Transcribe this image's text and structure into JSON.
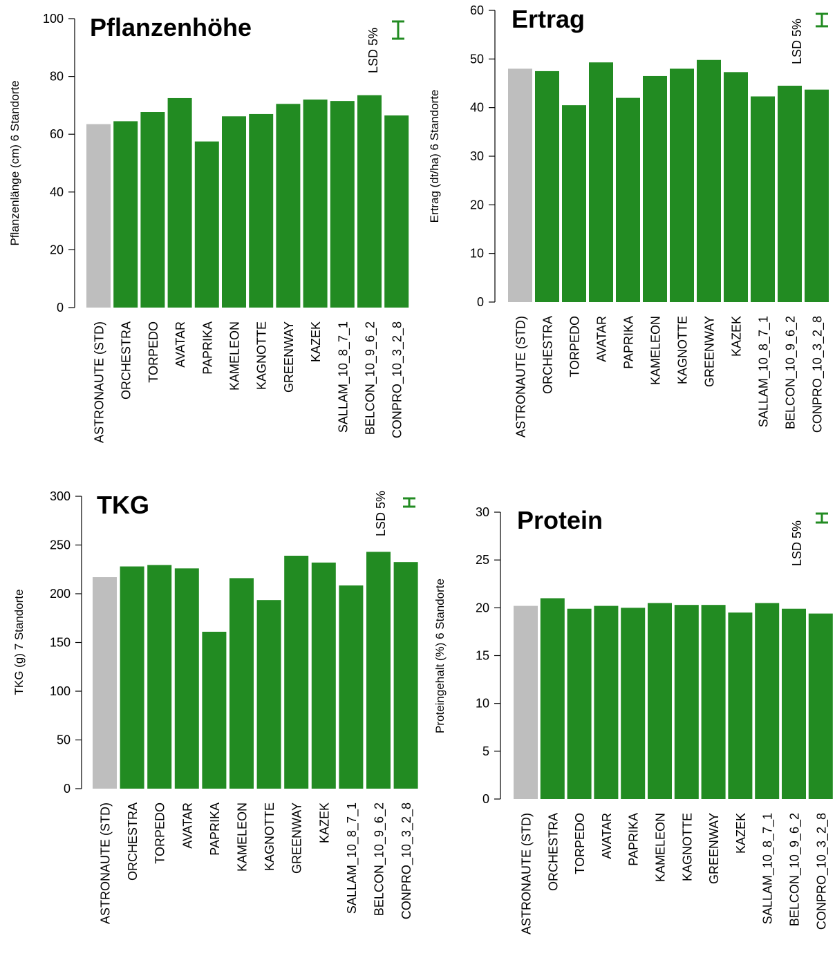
{
  "colors": {
    "std_bar": "#bebebe",
    "bar": "#228b22",
    "axis": "#000000",
    "lsd": "#228b22"
  },
  "categories": [
    "ASTRONAUTE (STD)",
    "ORCHESTRA",
    "TORPEDO",
    "AVATAR",
    "PAPRIKA",
    "KAMELEON",
    "KAGNOTTE",
    "GREENWAY",
    "KAZEK",
    "SALLAM_10_8_7_1",
    "BELCON_10_9_6_2",
    "CONPRO_10_3_2_8"
  ],
  "chart_data": [
    {
      "type": "bar",
      "title": "Pflanzenhöhe",
      "ylabel": "Pflanzenlänge (cm) 6 Standorte",
      "ylim": [
        0,
        100
      ],
      "yticks": [
        0,
        20,
        40,
        60,
        80,
        100
      ],
      "categories": [
        "ASTRONAUTE (STD)",
        "ORCHESTRA",
        "TORPEDO",
        "AVATAR",
        "PAPRIKA",
        "KAMELEON",
        "KAGNOTTE",
        "GREENWAY",
        "KAZEK",
        "SALLAM_10_8_7_1",
        "BELCON_10_9_6_2",
        "CONPRO_10_3_2_8"
      ],
      "values": [
        63.5,
        64.5,
        67.7,
        72.5,
        57.5,
        66.2,
        67.0,
        70.5,
        72.0,
        71.5,
        73.5,
        66.5
      ],
      "standard_index": 0,
      "lsd_label": "LSD 5%",
      "lsd": 6
    },
    {
      "type": "bar",
      "title": "Ertrag",
      "ylabel": "Ertrag (dt/ha) 6 Standorte",
      "ylim": [
        0,
        60
      ],
      "yticks": [
        0,
        10,
        20,
        30,
        40,
        50,
        60
      ],
      "categories": [
        "ASTRONAUTE (STD)",
        "ORCHESTRA",
        "TORPEDO",
        "AVATAR",
        "PAPRIKA",
        "KAMELEON",
        "KAGNOTTE",
        "GREENWAY",
        "KAZEK",
        "SALLAM_10_8_7_1",
        "BELCON_10_9_6_2",
        "CONPRO_10_3_2_8"
      ],
      "values": [
        48.0,
        47.5,
        40.5,
        49.3,
        42.0,
        46.5,
        48.0,
        49.8,
        47.3,
        42.3,
        44.5,
        43.7
      ],
      "standard_index": 0,
      "lsd_label": "LSD 5%",
      "lsd": 2.2
    },
    {
      "type": "bar",
      "title": "TKG",
      "ylabel": "TKG (g) 7 Standorte",
      "ylim": [
        0,
        300
      ],
      "yticks": [
        0,
        50,
        100,
        150,
        200,
        250,
        300
      ],
      "categories": [
        "ASTRONAUTE (STD)",
        "ORCHESTRA",
        "TORPEDO",
        "AVATAR",
        "PAPRIKA",
        "KAMELEON",
        "KAGNOTTE",
        "GREENWAY",
        "KAZEK",
        "SALLAM_10_8_7_1",
        "BELCON_10_9_6_2",
        "CONPRO_10_3_2_8"
      ],
      "values": [
        217,
        228,
        229.5,
        226,
        161,
        216,
        193.5,
        239,
        232,
        208.5,
        243,
        232.5
      ],
      "standard_index": 0,
      "lsd_label": "LSD 5%",
      "lsd": 7
    },
    {
      "type": "bar",
      "title": "Protein",
      "ylabel": "Proteingehalt (%) 6 Standorte",
      "ylim": [
        0,
        30
      ],
      "yticks": [
        0,
        5,
        10,
        15,
        20,
        25,
        30
      ],
      "categories": [
        "ASTRONAUTE (STD)",
        "ORCHESTRA",
        "TORPEDO",
        "AVATAR",
        "PAPRIKA",
        "KAMELEON",
        "KAGNOTTE",
        "GREENWAY",
        "KAZEK",
        "SALLAM_10_8_7_1",
        "BELCON_10_9_6_2",
        "CONPRO_10_3_2_8"
      ],
      "values": [
        20.2,
        21.0,
        19.9,
        20.2,
        20.0,
        20.5,
        20.3,
        20.3,
        19.5,
        20.5,
        19.9,
        19.4
      ],
      "standard_index": 0,
      "lsd_label": "LSD 5%",
      "lsd": 0.7
    }
  ]
}
